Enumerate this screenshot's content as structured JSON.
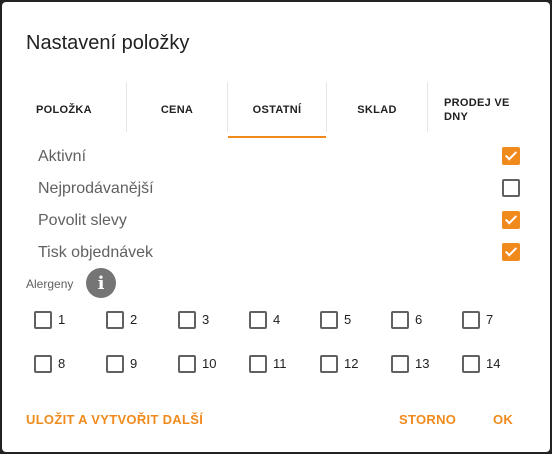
{
  "dialog": {
    "title": "Nastavení položky"
  },
  "tabs": [
    {
      "label": "POLOŽKA"
    },
    {
      "label": "CENA"
    },
    {
      "label": "OSTATNÍ"
    },
    {
      "label": "SKLAD"
    },
    {
      "label_line1": "PRODEJ VE",
      "label_line2": "DNY"
    }
  ],
  "active_tab": "OSTATNÍ",
  "options": [
    {
      "label": "Aktivní",
      "checked": true
    },
    {
      "label": "Nejprodávanější",
      "checked": false
    },
    {
      "label": "Povolit slevy",
      "checked": true
    },
    {
      "label": "Tisk objednávek",
      "checked": true
    }
  ],
  "allergens": {
    "label": "Alergeny",
    "info_icon": "info-icon",
    "items": [
      "1",
      "2",
      "3",
      "4",
      "5",
      "6",
      "7",
      "8",
      "9",
      "10",
      "11",
      "12",
      "13",
      "14"
    ]
  },
  "actions": {
    "save_and_new": "ULOŽIT A VYTVOŘIT DALŠÍ",
    "cancel": "STORNO",
    "ok": "OK"
  },
  "colors": {
    "accent": "#f08a1c",
    "text": "#212121",
    "muted": "#616161"
  }
}
